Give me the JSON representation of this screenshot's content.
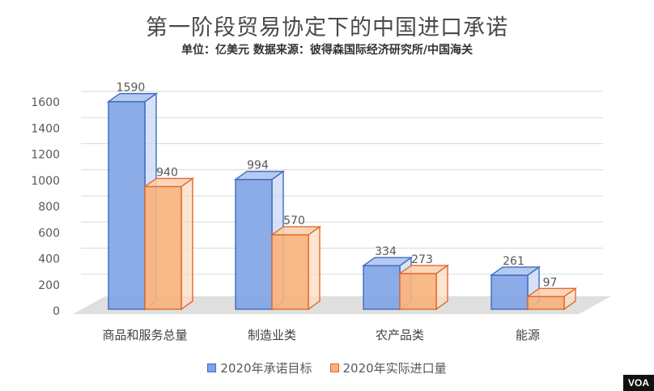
{
  "title": "第一阶段贸易协定下的中国进口承诺",
  "subtitle": "单位：亿美元     数据来源：彼得森国际经济研究所/中国海关",
  "badge": "VOA",
  "colors": {
    "series1_front": "#7fa3e6",
    "series1_top": "#a9c1ef",
    "series1_side": "#c9d8f5",
    "series1_stroke": "#3e6ac2",
    "series2_front": "#f8b27c",
    "series2_top": "#fbcfae",
    "series2_side": "#fcdcc3",
    "series2_stroke": "#e0692a",
    "floor": "#d9d9d9",
    "grid": "#d9d9d9"
  },
  "chart_data": {
    "type": "bar",
    "categories": [
      "商品和服务总量",
      "制造业类",
      "农产品类",
      "能源"
    ],
    "series": [
      {
        "name": "2020年承诺目标",
        "values": [
          1590,
          994,
          334,
          261
        ]
      },
      {
        "name": "2020年实际进口量",
        "values": [
          940,
          570,
          273,
          97
        ]
      }
    ],
    "data_labels": [
      [
        "1590",
        "994",
        "334",
        "261"
      ],
      [
        "940",
        "570",
        "273",
        "97"
      ]
    ],
    "y_ticks": [
      "0",
      "200",
      "400",
      "600",
      "800",
      "1000",
      "1200",
      "1400",
      "1600"
    ],
    "ylim": [
      0,
      1600
    ],
    "grid": true,
    "legend_position": "bottom",
    "style": "3d-clustered-column"
  }
}
